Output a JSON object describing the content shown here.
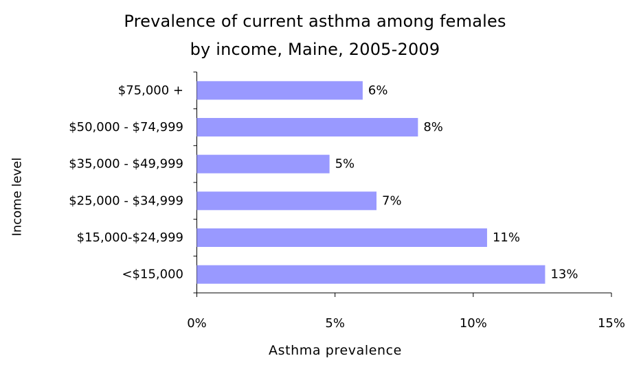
{
  "chart_data": {
    "type": "bar",
    "orientation": "horizontal",
    "title": [
      "Prevalence of current asthma among females",
      "by income, Maine, 2005-2009"
    ],
    "xlabel": "Asthma prevalence",
    "ylabel": "Income level",
    "categories": [
      "$75,000 +",
      "$50,000 - $74,999",
      "$35,000 - $49,999",
      "$25,000 - $34,999",
      "$15,000-$24,999",
      "<$15,000"
    ],
    "values": [
      6.0,
      8.0,
      4.8,
      6.5,
      10.5,
      12.6
    ],
    "data_labels": [
      "6%",
      "8%",
      "5%",
      "7%",
      "11%",
      "13%"
    ],
    "xlim": [
      0,
      15
    ],
    "x_ticks": [
      0,
      5,
      10,
      15
    ],
    "x_tick_labels": [
      "0%",
      "5%",
      "10%",
      "15%"
    ],
    "bar_color": "#9999FF",
    "grid": false,
    "legend": "none"
  }
}
